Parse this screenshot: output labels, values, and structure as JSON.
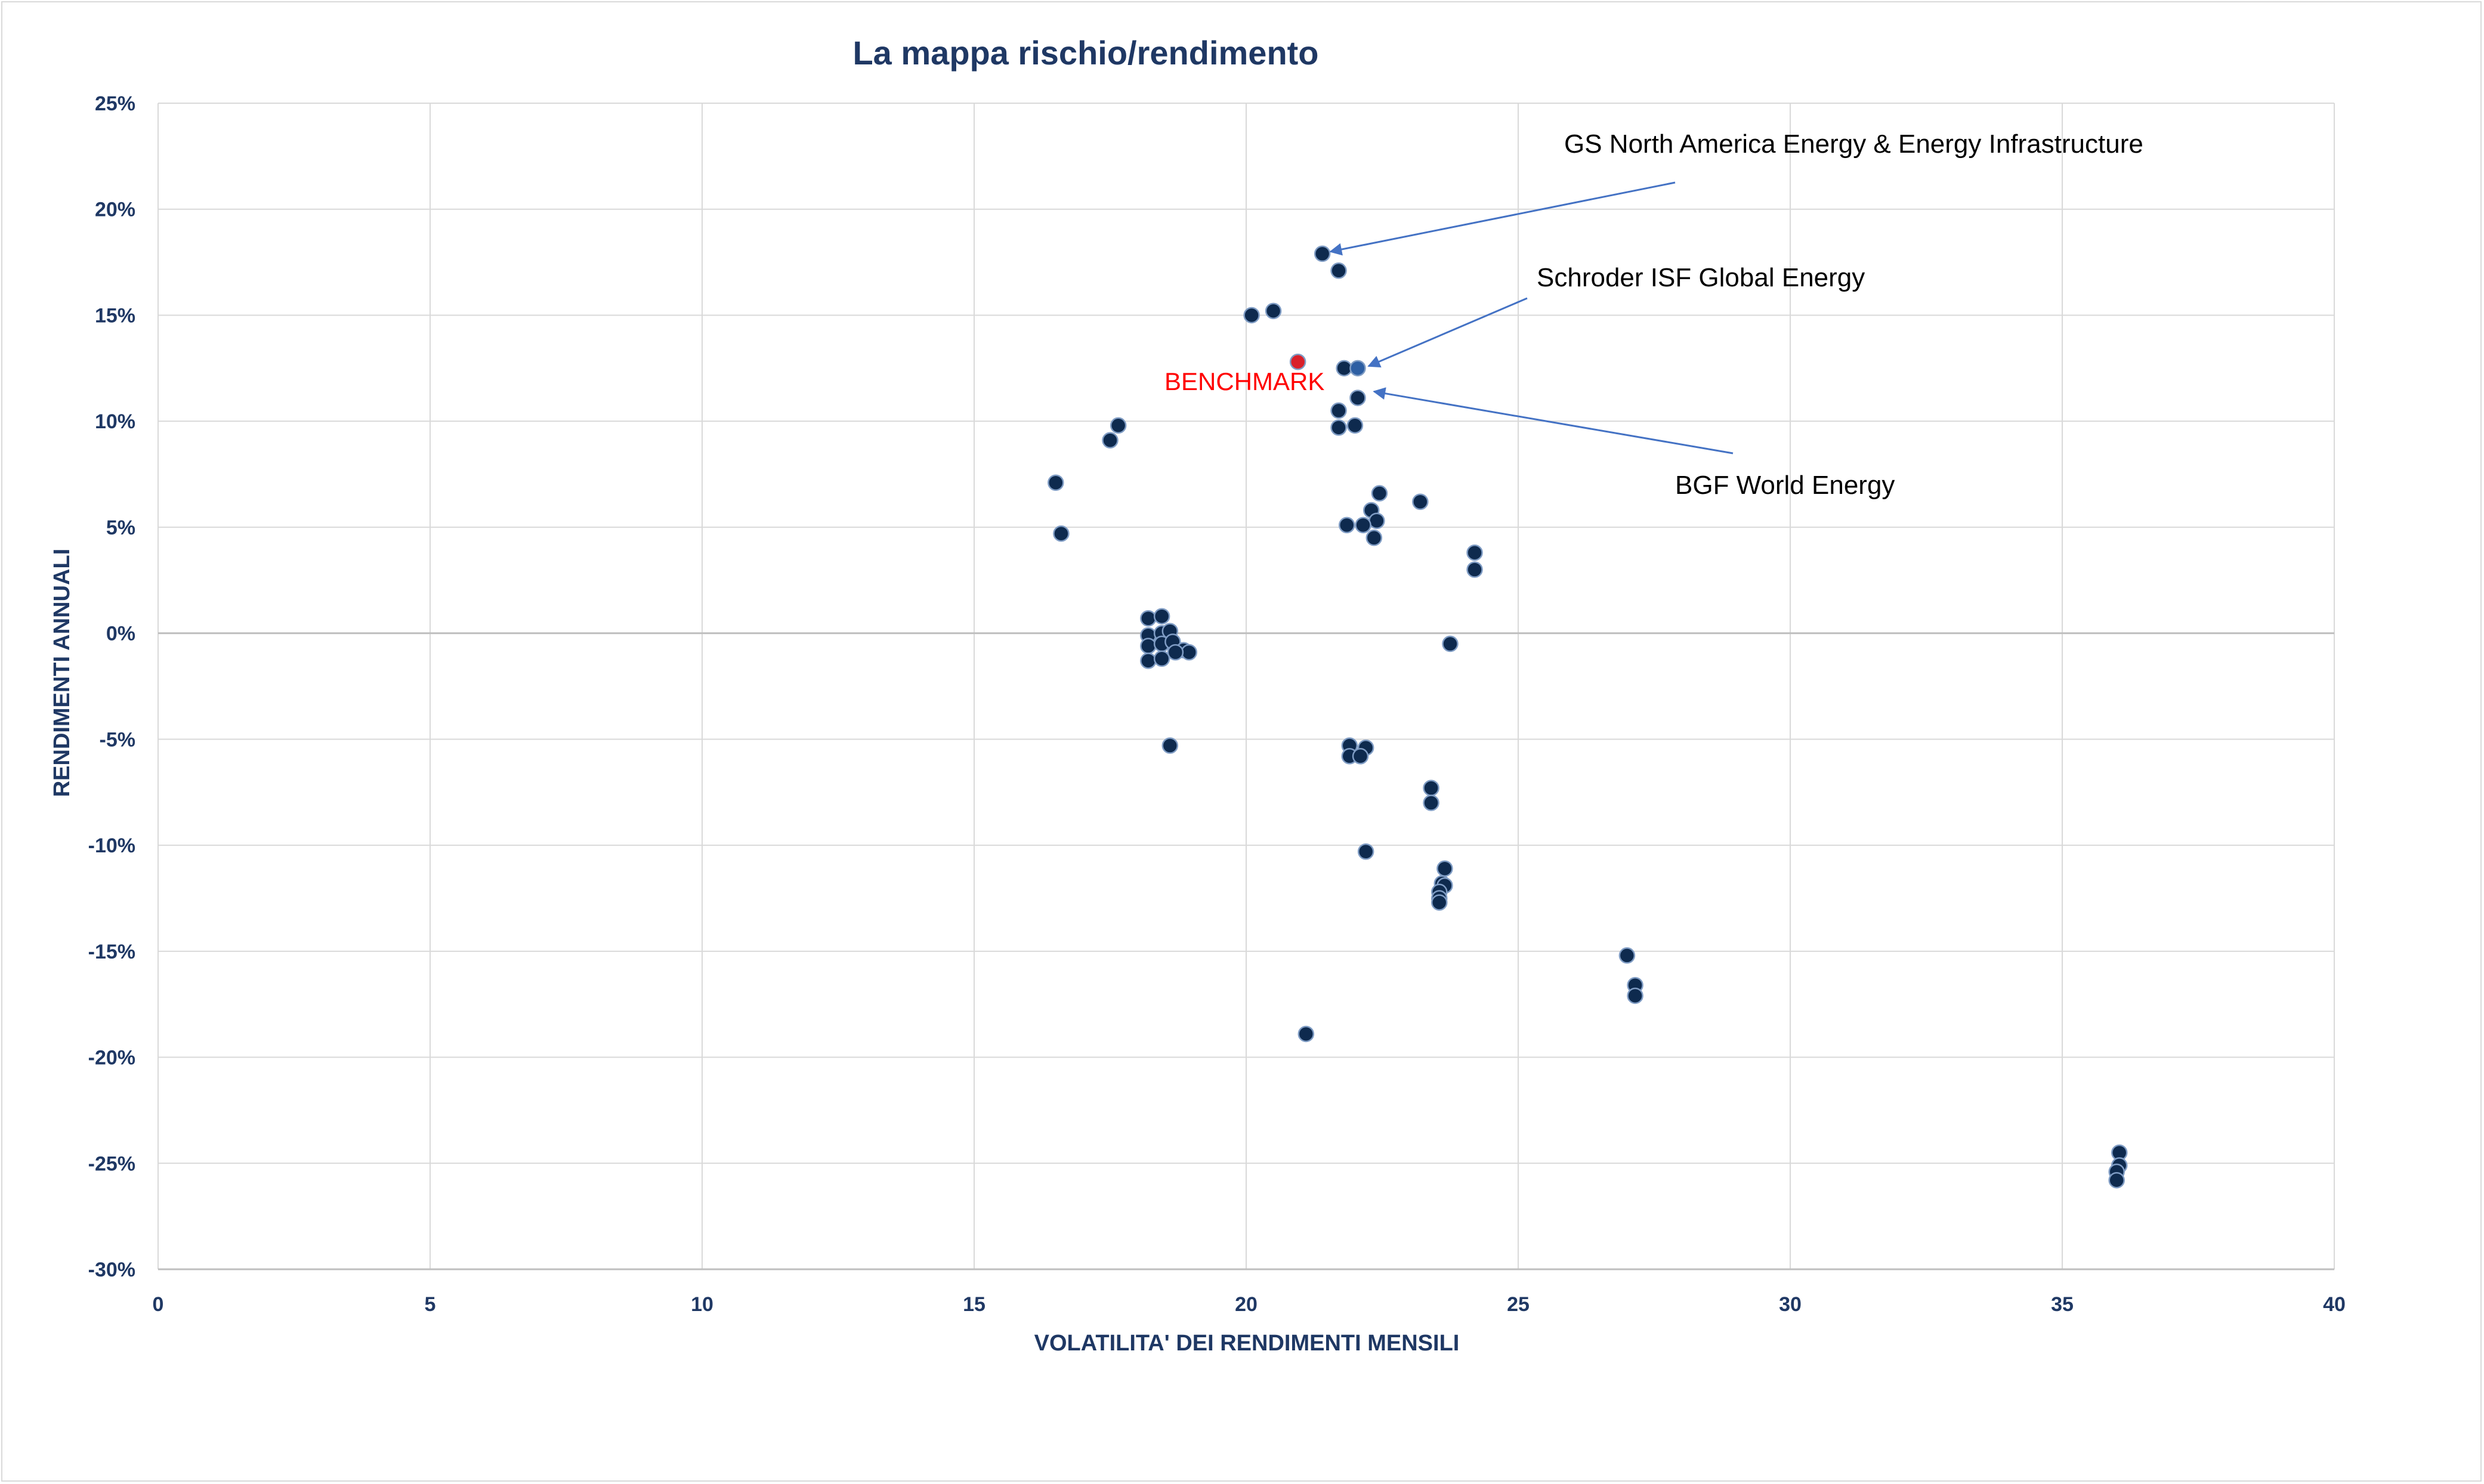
{
  "chart_data": {
    "type": "scatter",
    "title": "La mappa rischio/rendimento",
    "xlabel": "VOLATILITA' DEI RENDIMENTI MENSILI",
    "ylabel": "RENDIMENTI ANNUALI",
    "xlim": [
      0,
      40
    ],
    "ylim": [
      -30,
      25
    ],
    "x_ticks": [
      0,
      5,
      10,
      15,
      20,
      25,
      30,
      35,
      40
    ],
    "y_ticks": [
      25,
      20,
      15,
      10,
      5,
      0,
      -5,
      -10,
      -15,
      -20,
      -25,
      -30
    ],
    "x_tick_labels": [
      "0",
      "5",
      "10",
      "15",
      "20",
      "25",
      "30",
      "35",
      "40"
    ],
    "y_tick_labels": [
      "25%",
      "20%",
      "15%",
      "10%",
      "5%",
      "0%",
      "-5%",
      "-10%",
      "-15%",
      "-20%",
      "-25%",
      "-30%"
    ],
    "grid": true,
    "colors": {
      "point": "#0e2a4e",
      "point_stroke": "#7f9cc4",
      "highlight": "#2e5fa3",
      "benchmark": "#d9202a",
      "arrow": "#4472c4",
      "grid": "#d9d9d9",
      "zero_line": "#bfbfbf",
      "text": "#1f3864"
    },
    "series": [
      {
        "color": "#0e2a4e",
        "points": [
          [
            21.4,
            17.9
          ],
          [
            21.7,
            17.1
          ],
          [
            20.1,
            15.0
          ],
          [
            20.5,
            15.2
          ],
          [
            21.8,
            12.5
          ],
          [
            22.05,
            11.1
          ],
          [
            21.7,
            10.5
          ],
          [
            21.7,
            9.7
          ],
          [
            22.0,
            9.8
          ],
          [
            17.65,
            9.8
          ],
          [
            17.5,
            9.1
          ],
          [
            16.5,
            7.1
          ],
          [
            16.6,
            4.7
          ],
          [
            22.45,
            6.6
          ],
          [
            22.3,
            5.8
          ],
          [
            22.4,
            5.3
          ],
          [
            22.15,
            5.1
          ],
          [
            21.85,
            5.1
          ],
          [
            22.35,
            4.5
          ],
          [
            23.2,
            6.2
          ],
          [
            24.2,
            3.8
          ],
          [
            24.2,
            3.0
          ],
          [
            23.75,
            -0.5
          ],
          [
            18.2,
            0.7
          ],
          [
            18.45,
            0.8
          ],
          [
            18.2,
            -0.1
          ],
          [
            18.45,
            0.0
          ],
          [
            18.6,
            0.1
          ],
          [
            18.2,
            -0.6
          ],
          [
            18.45,
            -0.5
          ],
          [
            18.65,
            -0.4
          ],
          [
            18.85,
            -0.8
          ],
          [
            18.95,
            -0.9
          ],
          [
            18.7,
            -0.9
          ],
          [
            18.2,
            -1.3
          ],
          [
            18.45,
            -1.2
          ],
          [
            18.6,
            -5.3
          ],
          [
            21.9,
            -5.3
          ],
          [
            22.2,
            -5.4
          ],
          [
            21.9,
            -5.8
          ],
          [
            22.1,
            -5.8
          ],
          [
            23.4,
            -7.3
          ],
          [
            23.4,
            -8.0
          ],
          [
            22.2,
            -10.3
          ],
          [
            23.65,
            -11.1
          ],
          [
            23.6,
            -11.8
          ],
          [
            23.65,
            -11.9
          ],
          [
            23.55,
            -12.2
          ],
          [
            23.55,
            -12.5
          ],
          [
            23.55,
            -12.7
          ],
          [
            21.1,
            -18.9
          ],
          [
            27.0,
            -15.2
          ],
          [
            27.15,
            -16.6
          ],
          [
            27.15,
            -17.1
          ],
          [
            36.05,
            -24.5
          ],
          [
            36.05,
            -25.1
          ],
          [
            36.0,
            -25.4
          ],
          [
            36.0,
            -25.8
          ]
        ]
      },
      {
        "color": "#2e5fa3",
        "points": [
          [
            22.05,
            12.5
          ]
        ]
      },
      {
        "name": "BENCHMARK",
        "color": "#d9202a",
        "points": [
          [
            20.95,
            12.8
          ]
        ]
      }
    ],
    "annotations": [
      {
        "text": "GS North America Energy & Energy Infrastructure",
        "target": [
          21.55,
          18.0
        ]
      },
      {
        "text": "Schroder ISF Global Energy",
        "target": [
          22.25,
          12.6
        ]
      },
      {
        "text": "BGF World Energy",
        "target": [
          22.35,
          11.4
        ]
      }
    ],
    "benchmark_label": "BENCHMARK"
  }
}
